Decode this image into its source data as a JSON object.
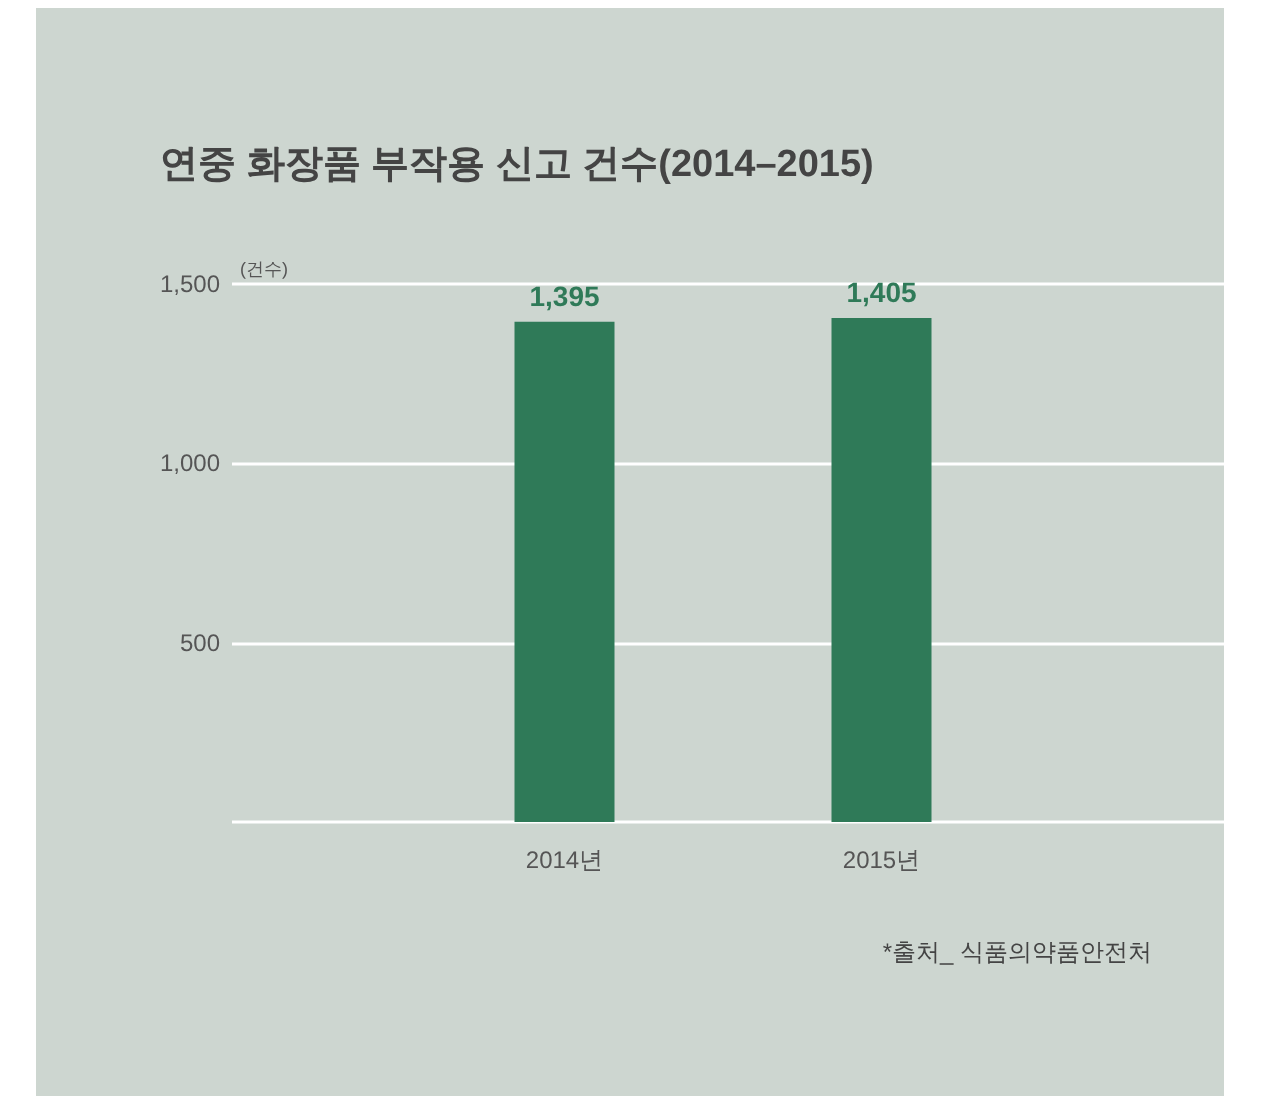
{
  "chart_data": {
    "type": "bar",
    "title": "연중 화장품 부작용 신고 건수(2014–2015)",
    "ylabel": "(건수)",
    "categories": [
      "2014년",
      "2015년"
    ],
    "values": [
      1395,
      1405
    ],
    "color": "#2f7a58",
    "value_labels": [
      "1,395",
      "1,405"
    ],
    "ylim": [
      0,
      1500
    ],
    "yticks": [
      {
        "value": 0,
        "label": null
      },
      500,
      {
        "value": 1000,
        "label": "1,000"
      },
      {
        "value": 1500,
        "label": "1,500"
      }
    ],
    "grid": "y",
    "annotations": [
      "*출처_ 식품의약품안전처"
    ]
  }
}
